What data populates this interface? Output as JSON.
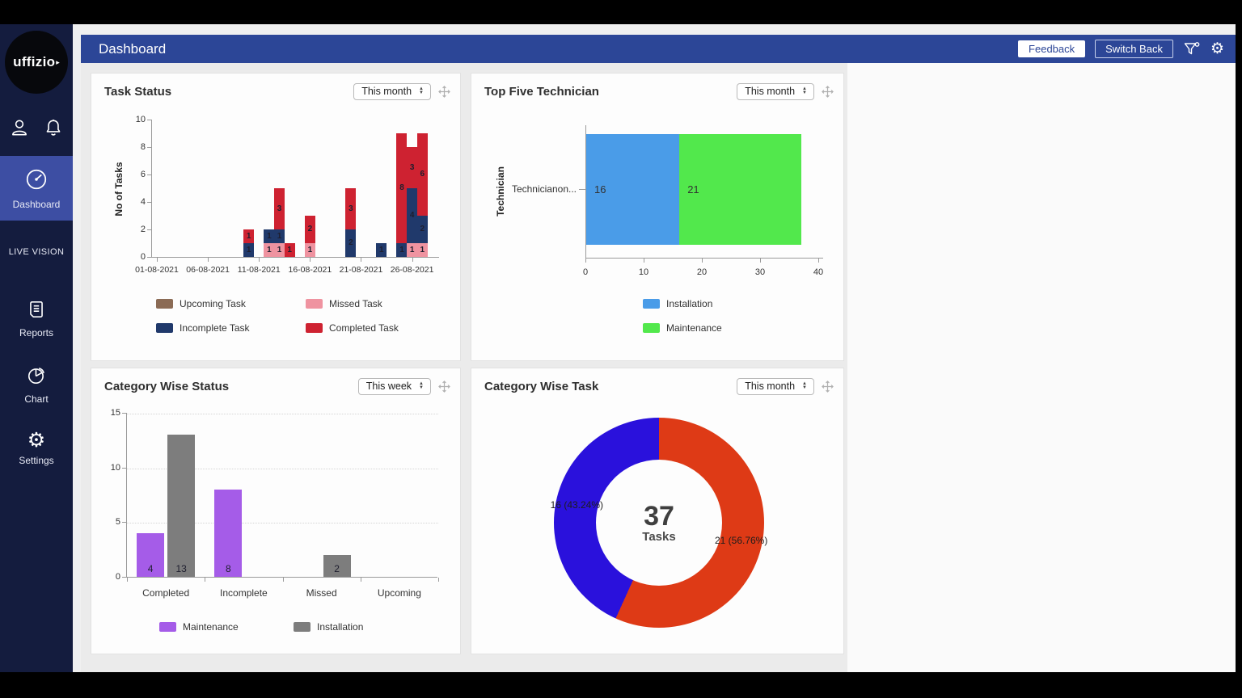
{
  "topbar": {
    "title": "Dashboard",
    "feedback_label": "Feedback",
    "switch_back_label": "Switch Back"
  },
  "icons": {
    "gear": "⚙",
    "spinner_up": "▲",
    "spinner_down": "▼",
    "logo_arrow": "▸"
  },
  "sidebar": {
    "logo_text": "uffizio",
    "items": [
      {
        "id": "dashboard",
        "label": "Dashboard",
        "active": true
      },
      {
        "id": "live-vision",
        "label": "LIVE VISION",
        "active": false
      },
      {
        "id": "reports",
        "label": "Reports",
        "active": false
      },
      {
        "id": "chart",
        "label": "Chart",
        "active": false
      },
      {
        "id": "settings",
        "label": "Settings",
        "active": false
      }
    ]
  },
  "chart_data": [
    {
      "id": "task-status",
      "type": "bar",
      "stacked": true,
      "title": "Task Status",
      "filter": "This month",
      "ylabel": "No of Tasks",
      "ylim": [
        0,
        10
      ],
      "yticks": [
        0,
        2,
        4,
        6,
        8,
        10
      ],
      "xtick_labels": [
        "01-08-2021",
        "06-08-2021",
        "11-08-2021",
        "16-08-2021",
        "21-08-2021",
        "26-08-2021"
      ],
      "xtick_days": [
        1,
        6,
        11,
        16,
        21,
        26
      ],
      "series_order": [
        "missed",
        "incomplete",
        "completed"
      ],
      "colors": {
        "upcoming": "#8b6b55",
        "missed": "#ef93a0",
        "incomplete": "#20396b",
        "completed": "#ce2231"
      },
      "legend": [
        {
          "name": "Upcoming Task",
          "color": "#8b6b55"
        },
        {
          "name": "Missed Task",
          "color": "#ef93a0"
        },
        {
          "name": "Incomplete Task",
          "color": "#20396b"
        },
        {
          "name": "Completed Task",
          "color": "#ce2231"
        }
      ],
      "bars": [
        {
          "day": 10,
          "missed": 0,
          "incomplete": 1,
          "completed": 1
        },
        {
          "day": 12,
          "missed": 1,
          "incomplete": 1,
          "completed": 0
        },
        {
          "day": 13,
          "missed": 1,
          "incomplete": 1,
          "completed": 3
        },
        {
          "day": 14,
          "missed": 0,
          "incomplete": 0,
          "completed": 1
        },
        {
          "day": 16,
          "missed": 1,
          "incomplete": 0,
          "completed": 2
        },
        {
          "day": 20,
          "missed": 0,
          "incomplete": 2,
          "completed": 3
        },
        {
          "day": 23,
          "missed": 0,
          "incomplete": 1,
          "completed": 0
        },
        {
          "day": 25,
          "missed": 0,
          "incomplete": 1,
          "completed": 8
        },
        {
          "day": 26,
          "missed": 1,
          "incomplete": 4,
          "completed": 3
        },
        {
          "day": 27,
          "missed": 1,
          "incomplete": 2,
          "completed": 6
        }
      ]
    },
    {
      "id": "top-five-technician",
      "type": "bar-horizontal-stacked",
      "title": "Top Five Technician",
      "filter": "This month",
      "ylabel": "Technician",
      "category": "Technicianon...",
      "xlim": [
        0,
        40
      ],
      "xticks": [
        0,
        10,
        20,
        30,
        40
      ],
      "segments": [
        {
          "name": "Installation",
          "value": 16,
          "color": "#4a9ce8"
        },
        {
          "name": "Maintenance",
          "value": 21,
          "color": "#52e84c"
        }
      ],
      "legend": [
        {
          "name": "Installation",
          "color": "#4a9ce8"
        },
        {
          "name": "Maintenance",
          "color": "#52e84c"
        }
      ]
    },
    {
      "id": "category-wise-status",
      "type": "bar-grouped",
      "title": "Category Wise Status",
      "filter": "This week",
      "ylim": [
        0,
        15
      ],
      "yticks": [
        0,
        5,
        10,
        15
      ],
      "categories": [
        "Completed",
        "Incomplete",
        "Missed",
        "Upcoming"
      ],
      "series": [
        {
          "name": "Maintenance",
          "color": "#a55ce8",
          "values": [
            4,
            8,
            null,
            null
          ]
        },
        {
          "name": "Installation",
          "color": "#7d7d7d",
          "values": [
            13,
            null,
            2,
            null
          ]
        }
      ]
    },
    {
      "id": "category-wise-task",
      "type": "donut",
      "title": "Category Wise Task",
      "filter": "This month",
      "center_value": "37",
      "center_label": "Tasks",
      "slices": [
        {
          "label": "21 (56.76%)",
          "value": 21,
          "color": "#de3a16"
        },
        {
          "label": "16 (43.24%)",
          "value": 16,
          "color": "#2a11dc"
        }
      ]
    }
  ]
}
